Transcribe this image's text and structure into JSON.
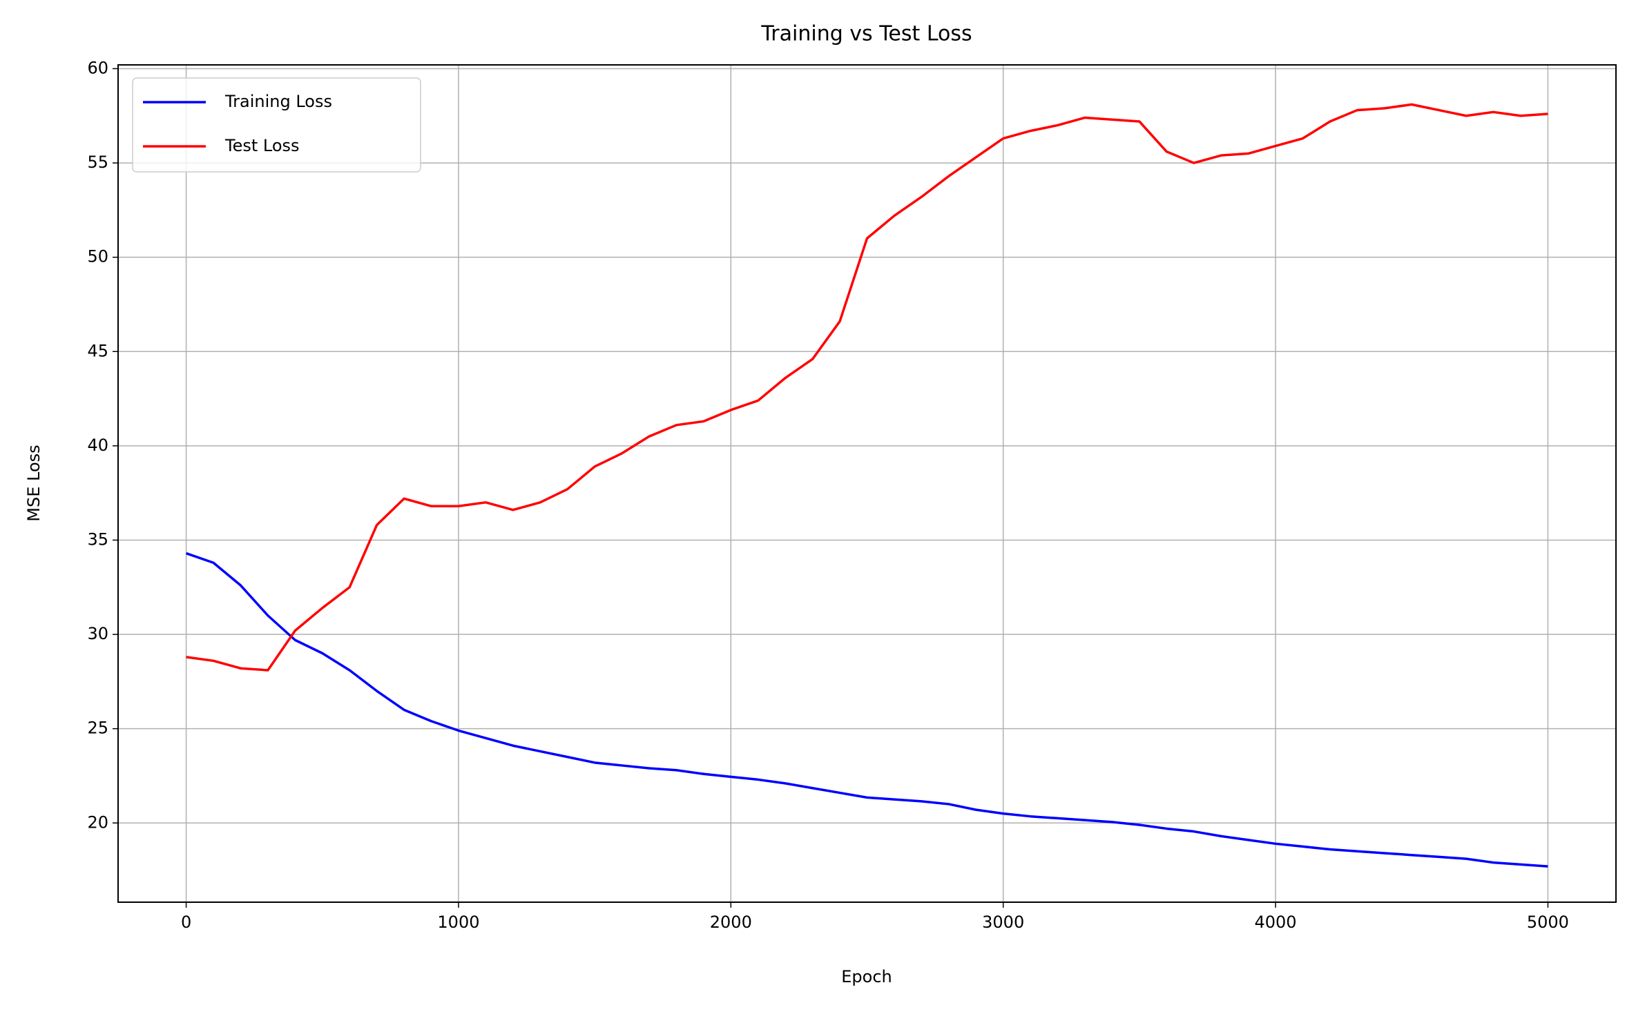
{
  "chart_data": {
    "type": "line",
    "title": "Training vs Test Loss",
    "x_label": "Epoch",
    "y_label": "MSE Loss",
    "x": [
      0,
      100,
      200,
      300,
      400,
      500,
      600,
      700,
      800,
      900,
      1000,
      1100,
      1200,
      1300,
      1400,
      1500,
      1600,
      1700,
      1800,
      1900,
      2000,
      2100,
      2200,
      2300,
      2400,
      2500,
      2600,
      2700,
      2800,
      2900,
      3000,
      3100,
      3200,
      3300,
      3400,
      3500,
      3600,
      3700,
      3800,
      3900,
      4000,
      4100,
      4200,
      4300,
      4400,
      4500,
      4600,
      4700,
      4800,
      4900,
      5000
    ],
    "series": [
      {
        "name": "Training Loss",
        "color": "#0000ff",
        "values": [
          34.3,
          33.8,
          32.6,
          31.0,
          29.7,
          29.0,
          28.1,
          27.0,
          26.0,
          25.4,
          24.9,
          24.5,
          24.1,
          23.8,
          23.5,
          23.2,
          23.05,
          22.9,
          22.8,
          22.6,
          22.45,
          22.3,
          22.1,
          21.85,
          21.6,
          21.35,
          21.25,
          21.15,
          21.0,
          20.7,
          20.5,
          20.35,
          20.25,
          20.15,
          20.05,
          19.9,
          19.7,
          19.55,
          19.3,
          19.1,
          18.9,
          18.75,
          18.6,
          18.5,
          18.4,
          18.3,
          18.2,
          18.1,
          17.9,
          17.8,
          17.7
        ]
      },
      {
        "name": "Test Loss",
        "color": "#ff0000",
        "values": [
          28.8,
          28.6,
          28.2,
          28.1,
          30.2,
          31.4,
          32.5,
          35.8,
          37.2,
          36.8,
          36.8,
          37.0,
          36.6,
          37.0,
          37.7,
          38.9,
          39.6,
          40.5,
          41.1,
          41.3,
          41.9,
          42.4,
          43.6,
          44.6,
          46.6,
          51.0,
          52.2,
          53.2,
          54.3,
          55.3,
          56.3,
          56.7,
          57.0,
          57.4,
          57.3,
          57.2,
          55.6,
          55.0,
          55.4,
          55.5,
          55.9,
          56.3,
          57.2,
          57.8,
          57.9,
          58.1,
          57.8,
          57.5,
          57.7,
          57.5,
          57.6
        ]
      }
    ],
    "xlim": [
      -250,
      5250
    ],
    "ylim": [
      15.8,
      60.2
    ],
    "xticks": [
      0,
      1000,
      2000,
      3000,
      4000,
      5000
    ],
    "yticks": [
      20,
      25,
      30,
      35,
      40,
      45,
      50,
      55,
      60
    ],
    "grid": true,
    "legend": "upper left"
  }
}
